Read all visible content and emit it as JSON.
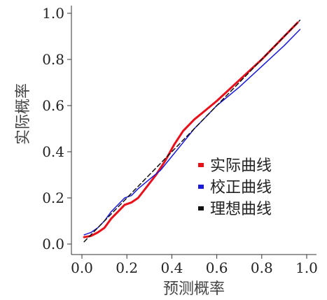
{
  "chart_data": {
    "type": "line",
    "title": "",
    "xlabel": "预测概率",
    "ylabel": "实际概率",
    "xlim": [
      0,
      1
    ],
    "ylim": [
      0,
      1
    ],
    "xticks": [
      "0.0",
      "0.2",
      "0.4",
      "0.6",
      "0.8",
      "1.0"
    ],
    "yticks": [
      "0.0",
      "0.2",
      "0.4",
      "0.6",
      "0.8",
      "1.0"
    ],
    "grid": false,
    "legend_position": "center-right",
    "series": [
      {
        "name": "实际曲线",
        "color": "#e8101a",
        "dash": "solid",
        "x": [
          0.01,
          0.04,
          0.07,
          0.1,
          0.13,
          0.16,
          0.19,
          0.22,
          0.25,
          0.29,
          0.33,
          0.37,
          0.41,
          0.45,
          0.5,
          0.55,
          0.6,
          0.7,
          0.8,
          0.9,
          0.96
        ],
        "y": [
          0.03,
          0.035,
          0.05,
          0.07,
          0.11,
          0.14,
          0.17,
          0.18,
          0.2,
          0.25,
          0.3,
          0.36,
          0.43,
          0.49,
          0.54,
          0.58,
          0.62,
          0.71,
          0.8,
          0.9,
          0.96
        ]
      },
      {
        "name": "校正曲线",
        "color": "#1a1ad8",
        "dash": "solid",
        "x": [
          0.01,
          0.04,
          0.07,
          0.1,
          0.13,
          0.16,
          0.19,
          0.22,
          0.25,
          0.3,
          0.35,
          0.4,
          0.45,
          0.5,
          0.55,
          0.6,
          0.7,
          0.8,
          0.9,
          0.97
        ],
        "y": [
          0.04,
          0.05,
          0.07,
          0.1,
          0.14,
          0.17,
          0.2,
          0.21,
          0.24,
          0.28,
          0.32,
          0.38,
          0.44,
          0.5,
          0.55,
          0.6,
          0.68,
          0.77,
          0.86,
          0.93
        ]
      },
      {
        "name": "理想曲线",
        "color": "#111111",
        "dash": "dashed",
        "x": [
          0.01,
          0.97
        ],
        "y": [
          0.01,
          0.97
        ]
      }
    ]
  }
}
